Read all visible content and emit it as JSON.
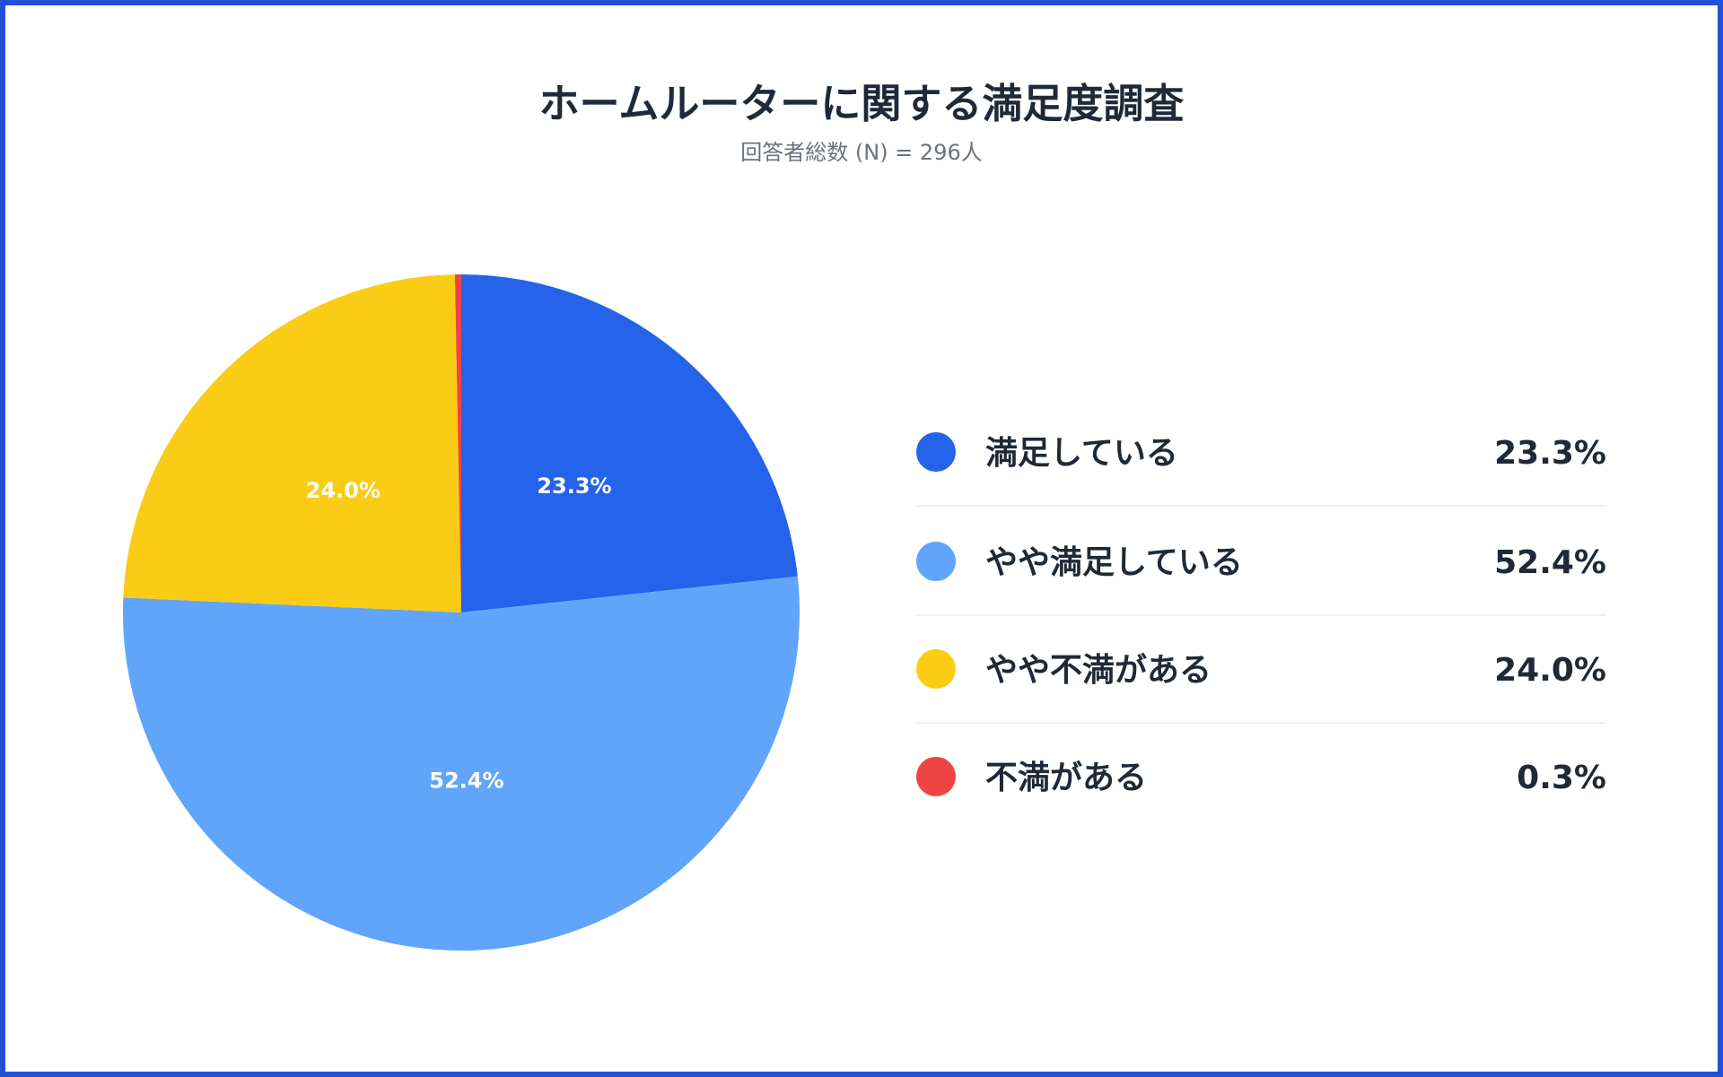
{
  "chart_data": {
    "type": "pie",
    "title": "ホームルーターに関する満足度調査",
    "subtitle": "回答者総数 (N) = 296人",
    "categories": [
      "満足している",
      "やや満足している",
      "やや不満がある",
      "不満がある"
    ],
    "values": [
      23.3,
      52.4,
      24.0,
      0.3
    ],
    "value_labels": [
      "23.3%",
      "52.4%",
      "24.0%",
      "0.3%"
    ],
    "colors": [
      "#2563eb",
      "#60a5fa",
      "#facc15",
      "#ef4444"
    ]
  }
}
